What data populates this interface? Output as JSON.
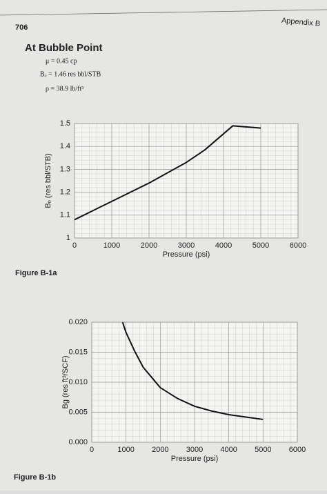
{
  "page": {
    "number": "706",
    "running_head": "Appendix B",
    "heading": "At Bubble Point",
    "params": [
      "μ = 0.45 cp",
      "Bₒ = 1.46 res bbl/STB",
      "ρ = 38.9 lb/ft³"
    ],
    "captions": [
      "Figure B-1a",
      "Figure B-1b"
    ]
  },
  "chart_data": [
    {
      "type": "line",
      "x_label": "Pressure (psi)",
      "y_label": "Bₒ (res bbl/STB)",
      "color": "#111111",
      "grid": true,
      "x": [
        0,
        500,
        1000,
        1500,
        2000,
        2500,
        3000,
        3500,
        4000,
        4250,
        5000
      ],
      "values": [
        1.08,
        1.12,
        1.16,
        1.2,
        1.24,
        1.285,
        1.33,
        1.385,
        1.455,
        1.49,
        1.48
      ],
      "xlim": [
        0,
        6000
      ],
      "xticks": [
        0,
        1000,
        2000,
        3000,
        4000,
        5000,
        6000
      ],
      "ylim": [
        1,
        1.5
      ],
      "yticks": [
        1,
        1.1,
        1.2,
        1.3,
        1.4,
        1.5
      ]
    },
    {
      "type": "line",
      "x_label": "Pressure (psi)",
      "y_label": "Bg (res ft³/SCF)",
      "color": "#111111",
      "grid": true,
      "x": [
        900,
        1000,
        1250,
        1500,
        2000,
        2500,
        3000,
        3500,
        4000,
        4500,
        5000
      ],
      "values": [
        0.02,
        0.0183,
        0.0152,
        0.0125,
        0.0091,
        0.0073,
        0.006,
        0.0052,
        0.0046,
        0.0042,
        0.0038
      ],
      "xlim": [
        0,
        6000
      ],
      "xticks": [
        0,
        1000,
        2000,
        3000,
        4000,
        5000,
        6000
      ],
      "ylim": [
        0,
        0.02
      ],
      "yticks": [
        {
          "value": 0,
          "label": "0.000"
        },
        {
          "value": 0.005,
          "label": "0.005"
        },
        {
          "value": 0.01,
          "label": "0.010"
        },
        {
          "value": 0.015,
          "label": "0.015"
        },
        {
          "value": 0.02,
          "label": "0.020"
        }
      ]
    }
  ]
}
